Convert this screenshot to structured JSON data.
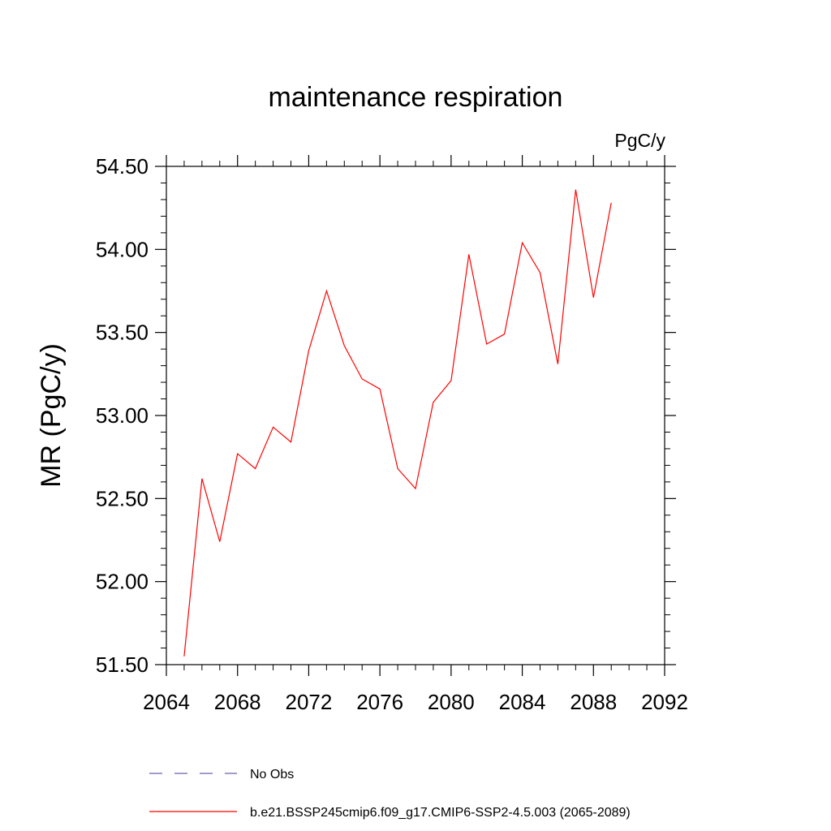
{
  "chart_data": {
    "type": "line",
    "title": "maintenance respiration",
    "units_label": "PgC/y",
    "xlabel": "",
    "ylabel": "MR  (PgC/y)",
    "xlim": [
      2064,
      2092
    ],
    "ylim": [
      51.5,
      54.5
    ],
    "xticks": [
      "2064",
      "2068",
      "2072",
      "2076",
      "2080",
      "2084",
      "2088",
      "2092"
    ],
    "yticks": [
      "51.50",
      "52.00",
      "52.50",
      "53.00",
      "53.50",
      "54.00",
      "54.50"
    ],
    "grid": false,
    "legend_position": "bottom",
    "legend": [
      {
        "label": "No Obs",
        "color": "#6b5fb5",
        "style": "dashed"
      },
      {
        "label": "b.e21.BSSP245cmip6.f09_g17.CMIP6-SSP2-4.5.003 (2065-2089)",
        "color": "#ff0000",
        "style": "solid"
      }
    ],
    "series": [
      {
        "color": "#ff0000",
        "x": [
          2065,
          2066,
          2067,
          2068,
          2069,
          2070,
          2071,
          2072,
          2073,
          2074,
          2075,
          2076,
          2077,
          2078,
          2079,
          2080,
          2081,
          2082,
          2083,
          2084,
          2085,
          2086,
          2087,
          2088,
          2089
        ],
        "values": [
          51.55,
          52.62,
          52.24,
          52.77,
          52.68,
          52.93,
          52.84,
          53.39,
          53.75,
          53.42,
          53.22,
          53.16,
          52.68,
          52.56,
          53.08,
          53.21,
          53.97,
          53.43,
          53.49,
          54.04,
          53.86,
          53.31,
          54.36,
          53.71,
          54.28
        ]
      }
    ]
  }
}
